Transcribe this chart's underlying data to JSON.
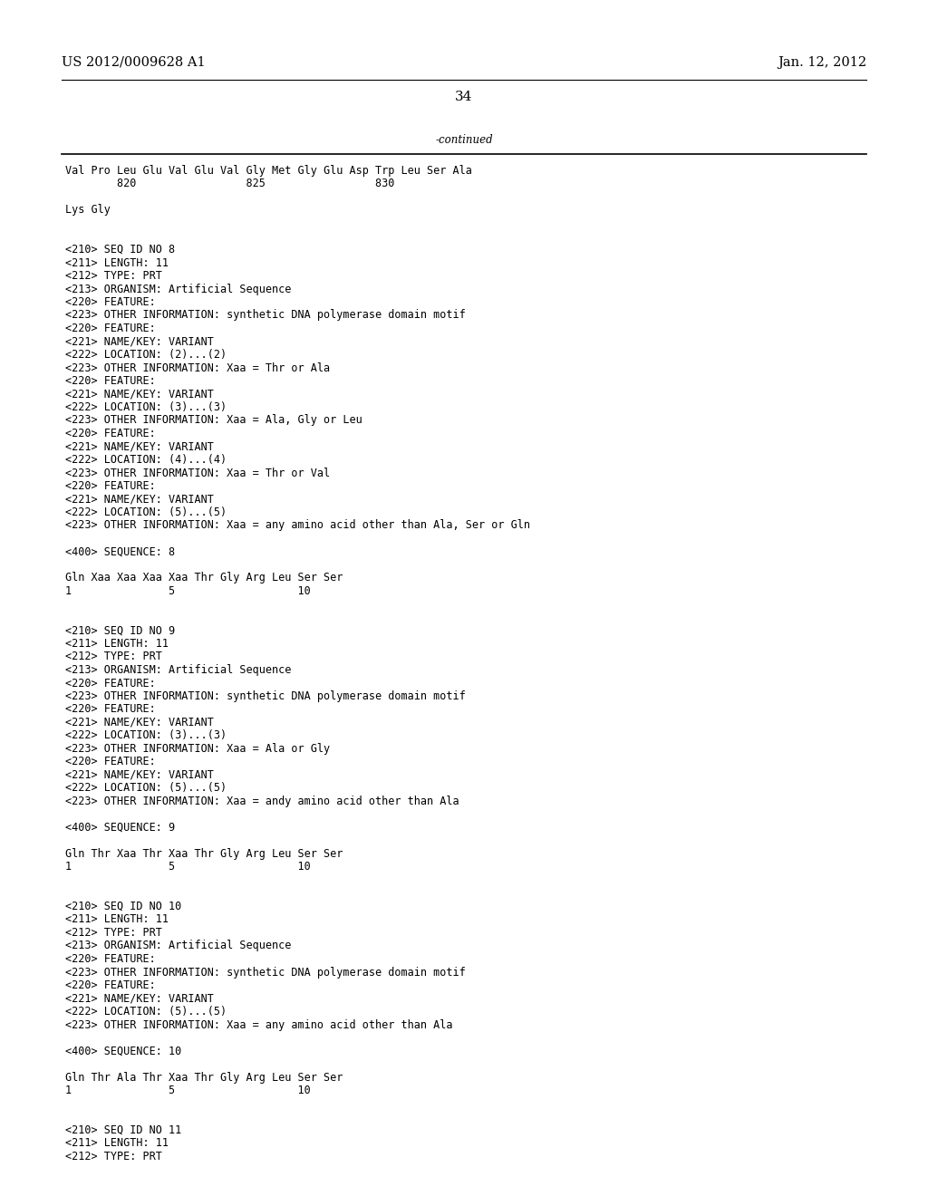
{
  "background_color": "#ffffff",
  "header_left": "US 2012/0009628 A1",
  "header_right": "Jan. 12, 2012",
  "page_number": "34",
  "continued_label": "-continued",
  "line_color": "#000000",
  "font_size_header": 10.5,
  "font_size_body": 8.5,
  "font_size_page": 11,
  "lines": [
    {
      "text": "Val Pro Leu Glu Val Glu Val Gly Met Gly Glu Asp Trp Leu Ser Ala",
      "type": "seq"
    },
    {
      "text": "        820                 825                 830",
      "type": "num"
    },
    {
      "text": "",
      "type": "blank"
    },
    {
      "text": "Lys Gly",
      "type": "seq"
    },
    {
      "text": "",
      "type": "blank"
    },
    {
      "text": "",
      "type": "blank"
    },
    {
      "text": "<210> SEQ ID NO 8",
      "type": "code"
    },
    {
      "text": "<211> LENGTH: 11",
      "type": "code"
    },
    {
      "text": "<212> TYPE: PRT",
      "type": "code"
    },
    {
      "text": "<213> ORGANISM: Artificial Sequence",
      "type": "code"
    },
    {
      "text": "<220> FEATURE:",
      "type": "code"
    },
    {
      "text": "<223> OTHER INFORMATION: synthetic DNA polymerase domain motif",
      "type": "code"
    },
    {
      "text": "<220> FEATURE:",
      "type": "code"
    },
    {
      "text": "<221> NAME/KEY: VARIANT",
      "type": "code"
    },
    {
      "text": "<222> LOCATION: (2)...(2)",
      "type": "code"
    },
    {
      "text": "<223> OTHER INFORMATION: Xaa = Thr or Ala",
      "type": "code"
    },
    {
      "text": "<220> FEATURE:",
      "type": "code"
    },
    {
      "text": "<221> NAME/KEY: VARIANT",
      "type": "code"
    },
    {
      "text": "<222> LOCATION: (3)...(3)",
      "type": "code"
    },
    {
      "text": "<223> OTHER INFORMATION: Xaa = Ala, Gly or Leu",
      "type": "code"
    },
    {
      "text": "<220> FEATURE:",
      "type": "code"
    },
    {
      "text": "<221> NAME/KEY: VARIANT",
      "type": "code"
    },
    {
      "text": "<222> LOCATION: (4)...(4)",
      "type": "code"
    },
    {
      "text": "<223> OTHER INFORMATION: Xaa = Thr or Val",
      "type": "code"
    },
    {
      "text": "<220> FEATURE:",
      "type": "code"
    },
    {
      "text": "<221> NAME/KEY: VARIANT",
      "type": "code"
    },
    {
      "text": "<222> LOCATION: (5)...(5)",
      "type": "code"
    },
    {
      "text": "<223> OTHER INFORMATION: Xaa = any amino acid other than Ala, Ser or Gln",
      "type": "code"
    },
    {
      "text": "",
      "type": "blank"
    },
    {
      "text": "<400> SEQUENCE: 8",
      "type": "code"
    },
    {
      "text": "",
      "type": "blank"
    },
    {
      "text": "Gln Xaa Xaa Xaa Xaa Thr Gly Arg Leu Ser Ser",
      "type": "seq"
    },
    {
      "text": "1               5                   10",
      "type": "num"
    },
    {
      "text": "",
      "type": "blank"
    },
    {
      "text": "",
      "type": "blank"
    },
    {
      "text": "<210> SEQ ID NO 9",
      "type": "code"
    },
    {
      "text": "<211> LENGTH: 11",
      "type": "code"
    },
    {
      "text": "<212> TYPE: PRT",
      "type": "code"
    },
    {
      "text": "<213> ORGANISM: Artificial Sequence",
      "type": "code"
    },
    {
      "text": "<220> FEATURE:",
      "type": "code"
    },
    {
      "text": "<223> OTHER INFORMATION: synthetic DNA polymerase domain motif",
      "type": "code"
    },
    {
      "text": "<220> FEATURE:",
      "type": "code"
    },
    {
      "text": "<221> NAME/KEY: VARIANT",
      "type": "code"
    },
    {
      "text": "<222> LOCATION: (3)...(3)",
      "type": "code"
    },
    {
      "text": "<223> OTHER INFORMATION: Xaa = Ala or Gly",
      "type": "code"
    },
    {
      "text": "<220> FEATURE:",
      "type": "code"
    },
    {
      "text": "<221> NAME/KEY: VARIANT",
      "type": "code"
    },
    {
      "text": "<222> LOCATION: (5)...(5)",
      "type": "code"
    },
    {
      "text": "<223> OTHER INFORMATION: Xaa = andy amino acid other than Ala",
      "type": "code"
    },
    {
      "text": "",
      "type": "blank"
    },
    {
      "text": "<400> SEQUENCE: 9",
      "type": "code"
    },
    {
      "text": "",
      "type": "blank"
    },
    {
      "text": "Gln Thr Xaa Thr Xaa Thr Gly Arg Leu Ser Ser",
      "type": "seq"
    },
    {
      "text": "1               5                   10",
      "type": "num"
    },
    {
      "text": "",
      "type": "blank"
    },
    {
      "text": "",
      "type": "blank"
    },
    {
      "text": "<210> SEQ ID NO 10",
      "type": "code"
    },
    {
      "text": "<211> LENGTH: 11",
      "type": "code"
    },
    {
      "text": "<212> TYPE: PRT",
      "type": "code"
    },
    {
      "text": "<213> ORGANISM: Artificial Sequence",
      "type": "code"
    },
    {
      "text": "<220> FEATURE:",
      "type": "code"
    },
    {
      "text": "<223> OTHER INFORMATION: synthetic DNA polymerase domain motif",
      "type": "code"
    },
    {
      "text": "<220> FEATURE:",
      "type": "code"
    },
    {
      "text": "<221> NAME/KEY: VARIANT",
      "type": "code"
    },
    {
      "text": "<222> LOCATION: (5)...(5)",
      "type": "code"
    },
    {
      "text": "<223> OTHER INFORMATION: Xaa = any amino acid other than Ala",
      "type": "code"
    },
    {
      "text": "",
      "type": "blank"
    },
    {
      "text": "<400> SEQUENCE: 10",
      "type": "code"
    },
    {
      "text": "",
      "type": "blank"
    },
    {
      "text": "Gln Thr Ala Thr Xaa Thr Gly Arg Leu Ser Ser",
      "type": "seq"
    },
    {
      "text": "1               5                   10",
      "type": "num"
    },
    {
      "text": "",
      "type": "blank"
    },
    {
      "text": "",
      "type": "blank"
    },
    {
      "text": "<210> SEQ ID NO 11",
      "type": "code"
    },
    {
      "text": "<211> LENGTH: 11",
      "type": "code"
    },
    {
      "text": "<212> TYPE: PRT",
      "type": "code"
    }
  ]
}
